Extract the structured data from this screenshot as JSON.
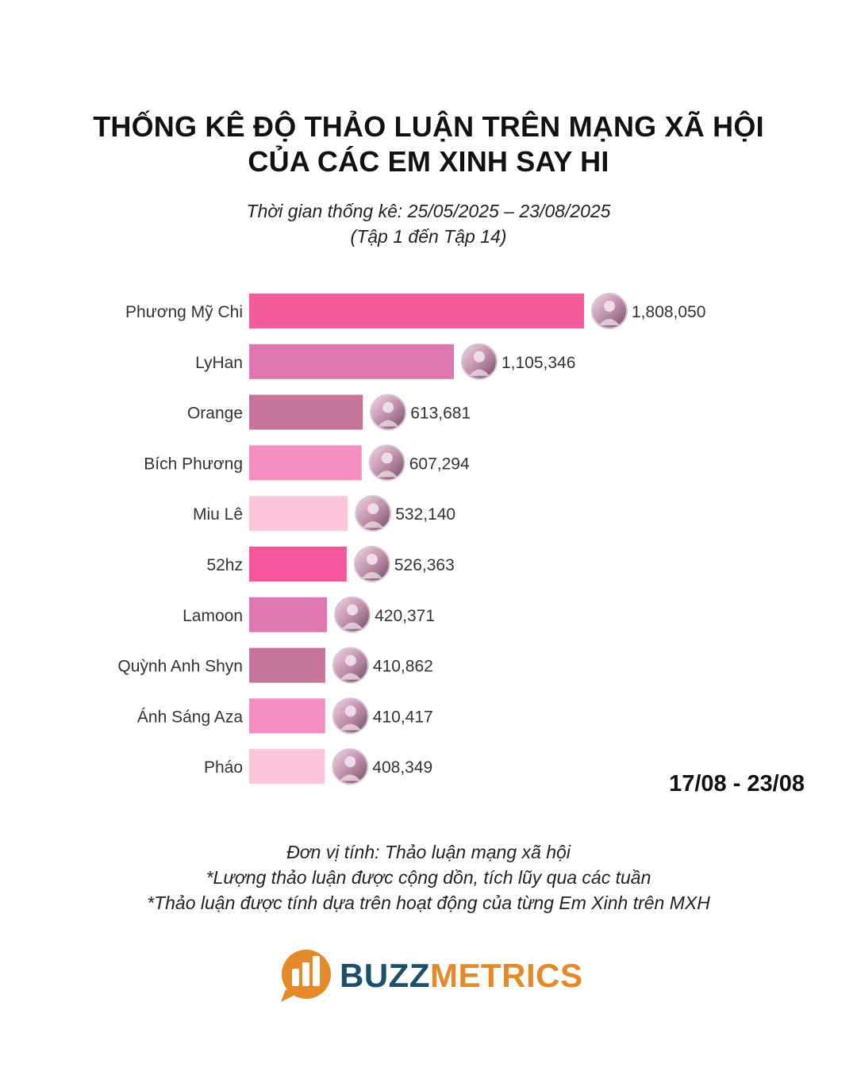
{
  "title_line1": "THỐNG KÊ ĐỘ THẢO LUẬN TRÊN MẠNG XÃ HỘI",
  "title_line2": "CỦA CÁC EM XINH SAY HI",
  "subtitle_line1": "Thời gian thống kê: 25/05/2025 – 23/08/2025",
  "subtitle_line2": "(Tập 1 đến Tập 14)",
  "week_range": "17/08 - 23/08",
  "notes": [
    "Đơn vị tính: Thảo luận mạng xã hội",
    "*Lượng thảo luận được cộng dồn, tích lũy qua các tuần",
    "*Thảo luận được tính dựa trên hoạt động của từng Em Xinh trên MXH"
  ],
  "logo": {
    "part1": "BUZZ",
    "part2": "METRICS",
    "color1": "#1d4e6b",
    "color2": "#e58a2a"
  },
  "chart_data": {
    "type": "bar",
    "orientation": "horizontal",
    "categories": [
      "Phương Mỹ Chi",
      "LyHan",
      "Orange",
      "Bích Phương",
      "Miu Lê",
      "52hz",
      "Lamoon",
      "Quỳnh Anh Shyn",
      "Ánh Sáng Aza",
      "Pháo"
    ],
    "values": [
      1808050,
      1105346,
      613681,
      607294,
      532140,
      526363,
      420371,
      410862,
      410417,
      408349
    ],
    "value_labels": [
      "1,808,050",
      "1,105,346",
      "613,681",
      "607,294",
      "532,140",
      "526,363",
      "420,371",
      "410,862",
      "410,417",
      "408,349"
    ],
    "colors": [
      "#f25c9b",
      "#df78b1",
      "#c67598",
      "#f58fc1",
      "#fcc5de",
      "#f5589a",
      "#df78b1",
      "#c67598",
      "#f58fc1",
      "#fcc5de"
    ],
    "xlim": [
      0,
      1808050
    ],
    "grid": false,
    "legend": "none",
    "avatar_icon": "avatar-photo-icon"
  }
}
